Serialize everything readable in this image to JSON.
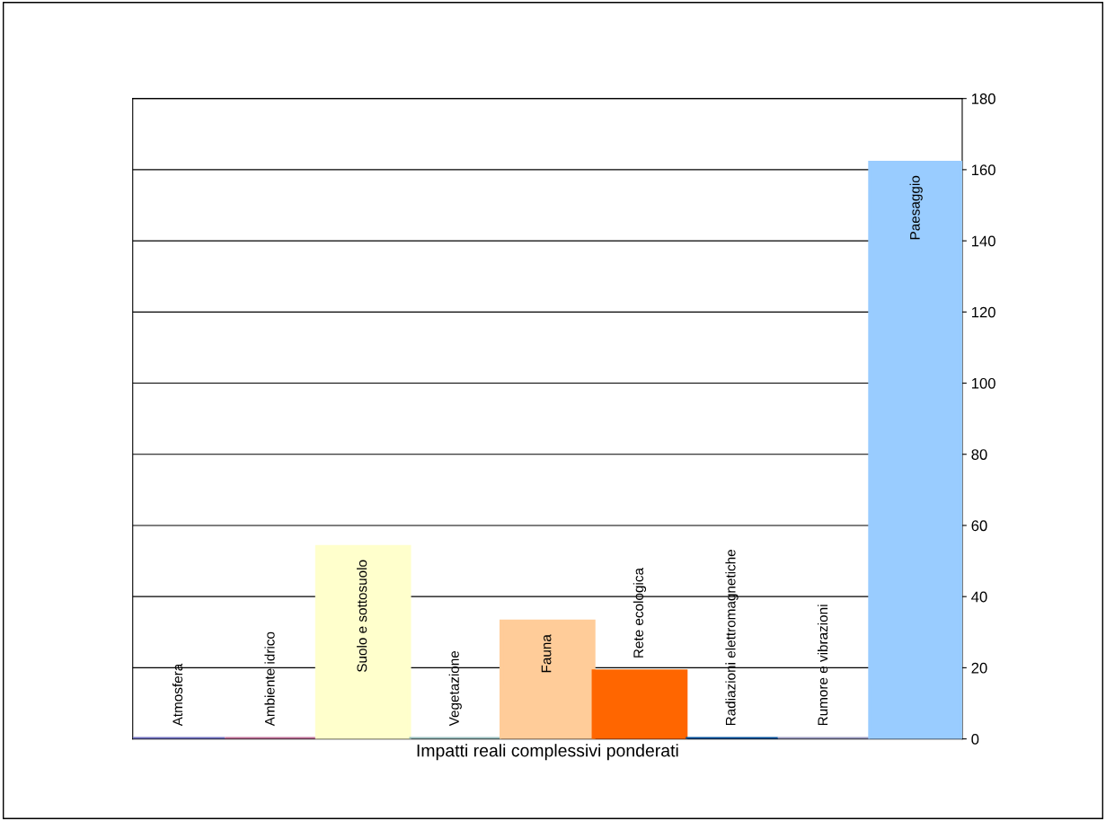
{
  "chart_data": {
    "type": "bar",
    "xlabel": "Impatti reali complessivi ponderati",
    "categories": [
      "Atmosfera",
      "Ambiente idrico",
      "Suolo e sottosuolo",
      "Vegetazione",
      "Fauna",
      "Rete ecologica",
      "Radiazioni elettromagnetiche",
      "Rumore e vibrazioni",
      "Paesaggio"
    ],
    "values": [
      0,
      0,
      54,
      0,
      33,
      19,
      0,
      0,
      162
    ],
    "colors": [
      "#7070c0",
      "#c07098",
      "#ffffcc",
      "#99c0c0",
      "#ffcc99",
      "#ff6600",
      "#00509a",
      "#9999c0",
      "#99ccff"
    ],
    "ylim": [
      0,
      180
    ],
    "yticks": [
      0,
      20,
      40,
      60,
      80,
      100,
      120,
      140,
      160,
      180
    ],
    "grid": "y",
    "tick_labels": "y"
  }
}
